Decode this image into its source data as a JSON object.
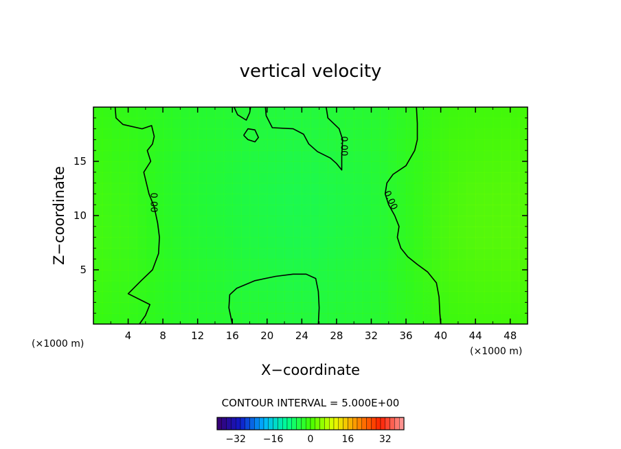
{
  "chart_data": {
    "type": "heatmap",
    "title": "vertical velocity",
    "xlabel": "X−coordinate",
    "ylabel": "Z−coordinate",
    "x_unit_label": "(×1000 m)",
    "y_unit_label": "(×1000 m)",
    "xlim": [
      0,
      50
    ],
    "ylim": [
      0,
      20
    ],
    "x_ticks": [
      4,
      8,
      12,
      16,
      20,
      24,
      28,
      32,
      36,
      40,
      44,
      48
    ],
    "y_ticks": [
      5,
      10,
      15
    ],
    "contour_interval_label": "CONTOUR INTERVAL = 5.000E+00",
    "contour_level_label": "0.00",
    "colorbar": {
      "range": [
        -40,
        40
      ],
      "ticks": [
        -32,
        -16,
        0,
        16,
        32
      ],
      "colors": [
        "#3a006e",
        "#1018c8",
        "#00b4ff",
        "#00ff90",
        "#40ff00",
        "#e6ff00",
        "#ff9000",
        "#ff2000",
        "#ffa0a0"
      ]
    },
    "field": {
      "x": [
        0,
        4,
        8,
        12,
        16,
        20,
        24,
        28,
        32,
        36,
        40,
        44,
        48,
        50
      ],
      "z": [
        0,
        4,
        8,
        12,
        16,
        20
      ],
      "values": [
        [
          0.3,
          0.2,
          -0.4,
          -0.8,
          -0.6,
          -0.6,
          -1.0,
          -1.0,
          -1.0,
          -0.3,
          0.3,
          0.6,
          0.5,
          0.4
        ],
        [
          1.0,
          0.8,
          -0.3,
          -1.2,
          -1.6,
          -1.8,
          -2.2,
          -2.0,
          -1.5,
          -0.2,
          1.2,
          1.8,
          2.0,
          1.6
        ],
        [
          1.6,
          1.2,
          -0.6,
          -1.8,
          -2.2,
          -2.6,
          -3.0,
          -2.8,
          -2.0,
          -0.5,
          1.8,
          2.8,
          3.0,
          2.4
        ],
        [
          1.4,
          1.0,
          -0.7,
          -2.0,
          -2.4,
          -2.8,
          -3.2,
          -3.0,
          -2.2,
          -0.4,
          1.5,
          2.6,
          2.8,
          2.2
        ],
        [
          0.6,
          0.4,
          -0.6,
          -1.8,
          -1.8,
          -2.0,
          -2.2,
          -2.0,
          -1.6,
          -0.4,
          0.8,
          1.4,
          1.6,
          1.2
        ],
        [
          0.2,
          0.0,
          -0.4,
          -1.0,
          -0.8,
          -1.0,
          -1.2,
          -1.0,
          -0.8,
          -0.3,
          0.4,
          0.6,
          0.6,
          0.5
        ]
      ]
    },
    "zero_contours": [
      {
        "name": "left",
        "points": [
          [
            5.3,
            0
          ],
          [
            6.0,
            0.8
          ],
          [
            6.5,
            1.8
          ],
          [
            4.0,
            2.8
          ],
          [
            5.5,
            4.0
          ],
          [
            6.8,
            5.0
          ],
          [
            7.5,
            6.5
          ],
          [
            7.6,
            8.0
          ],
          [
            7.4,
            9.3
          ],
          [
            7.0,
            10.8
          ],
          [
            6.4,
            12.0
          ],
          [
            5.8,
            14.0
          ],
          [
            6.6,
            15.0
          ],
          [
            6.2,
            16.0
          ],
          [
            6.8,
            16.6
          ],
          [
            7.0,
            17.3
          ],
          [
            6.7,
            18.3
          ],
          [
            5.6,
            18.0
          ],
          [
            3.4,
            18.4
          ],
          [
            2.6,
            19.0
          ],
          [
            2.5,
            20.0
          ]
        ]
      },
      {
        "name": "bottom-center",
        "points": [
          [
            16.0,
            0
          ],
          [
            15.6,
            1.5
          ],
          [
            15.7,
            2.7
          ],
          [
            16.5,
            3.3
          ],
          [
            18.6,
            4.0
          ],
          [
            21.0,
            4.4
          ],
          [
            23.0,
            4.6
          ],
          [
            24.5,
            4.6
          ],
          [
            25.6,
            4.2
          ],
          [
            25.9,
            3.0
          ],
          [
            26.0,
            1.5
          ],
          [
            25.9,
            0
          ]
        ]
      },
      {
        "name": "upper-center",
        "points": [
          [
            16.2,
            20.0
          ],
          [
            16.6,
            19.3
          ],
          [
            17.6,
            18.8
          ],
          [
            18.0,
            19.5
          ],
          [
            18.1,
            20.0
          ]
        ]
      },
      {
        "name": "upper-island",
        "points": [
          [
            17.3,
            17.4
          ],
          [
            17.8,
            17.0
          ],
          [
            18.6,
            16.8
          ],
          [
            19.0,
            17.2
          ],
          [
            18.6,
            17.9
          ],
          [
            17.8,
            18.0
          ],
          [
            17.3,
            17.4
          ]
        ]
      },
      {
        "name": "upper-right",
        "points": [
          [
            19.8,
            20.0
          ],
          [
            19.9,
            19.2
          ],
          [
            20.6,
            18.1
          ],
          [
            23.0,
            18.0
          ],
          [
            24.2,
            17.5
          ],
          [
            24.8,
            16.6
          ],
          [
            25.8,
            15.9
          ],
          [
            27.3,
            15.3
          ],
          [
            28.0,
            14.8
          ],
          [
            28.6,
            14.2
          ],
          [
            28.6,
            15.5
          ],
          [
            28.7,
            17.0
          ],
          [
            28.3,
            18.0
          ],
          [
            27.0,
            19.0
          ],
          [
            26.8,
            20.0
          ]
        ]
      },
      {
        "name": "right",
        "points": [
          [
            37.2,
            20.0
          ],
          [
            37.3,
            18.5
          ],
          [
            37.3,
            17.0
          ],
          [
            37.0,
            16.0
          ],
          [
            36.0,
            14.6
          ],
          [
            34.5,
            13.8
          ],
          [
            33.8,
            13.0
          ],
          [
            33.6,
            12.0
          ],
          [
            34.0,
            11.0
          ],
          [
            34.7,
            10.0
          ],
          [
            35.2,
            9.0
          ],
          [
            35.0,
            8.0
          ],
          [
            35.4,
            7.0
          ],
          [
            36.2,
            6.2
          ],
          [
            37.3,
            5.5
          ],
          [
            38.5,
            4.8
          ],
          [
            39.5,
            3.8
          ],
          [
            39.8,
            2.5
          ],
          [
            39.9,
            1.0
          ],
          [
            40.0,
            0
          ]
        ]
      }
    ]
  }
}
